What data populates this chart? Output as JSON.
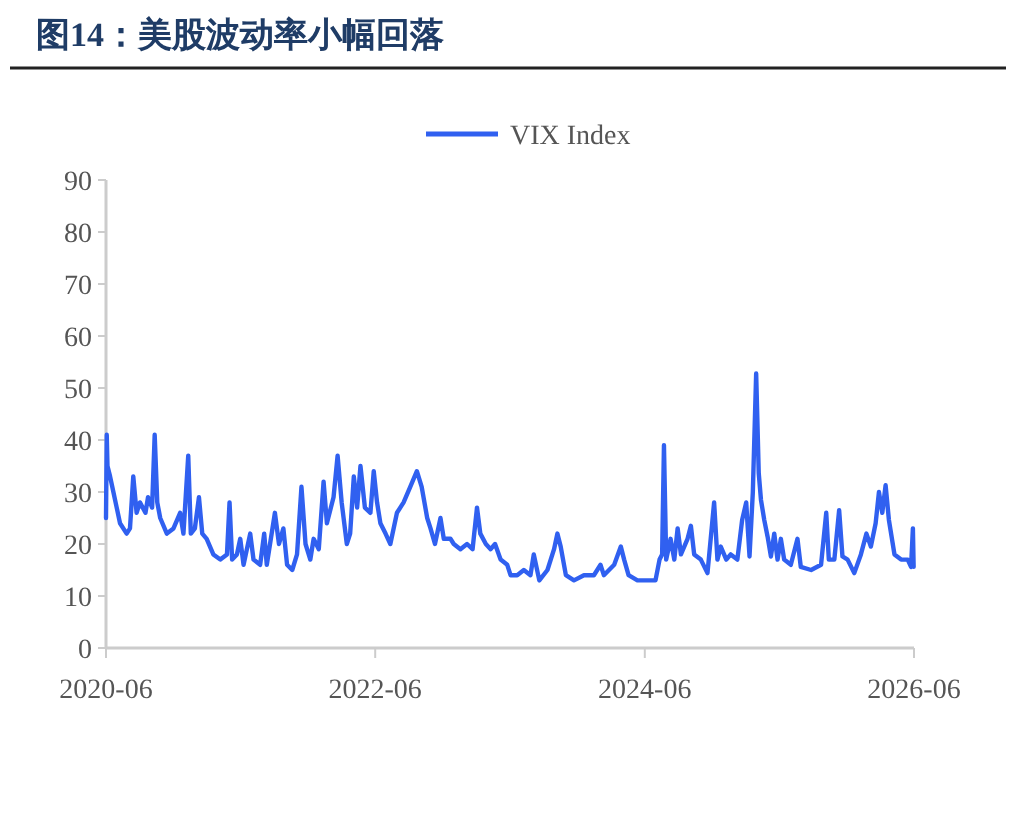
{
  "chart_data": {
    "type": "line",
    "title": "图14：美股波动率小幅回落",
    "legend": "top",
    "grid": false,
    "marker": "none",
    "line_style": "solid",
    "xlim": [
      "2020-06",
      "2026-06"
    ],
    "xticks": [
      "2020-06",
      "2022-06",
      "2024-06",
      "2026-06"
    ],
    "ylim": [
      0,
      90
    ],
    "yticks": [
      0,
      10,
      20,
      30,
      40,
      50,
      60,
      70,
      80,
      90
    ],
    "x": [
      "2020-06-01",
      "2020-06-03",
      "2020-06-05",
      "2020-06-12",
      "2020-06-21",
      "2020-06-30",
      "2020-07-09",
      "2020-07-27",
      "2020-08-05",
      "2020-08-14",
      "2020-08-23",
      "2020-09-01",
      "2020-09-16",
      "2020-09-23",
      "2020-10-04",
      "2020-10-11",
      "2020-10-18",
      "2020-10-26",
      "2020-11-13",
      "2020-12-01",
      "2020-12-19",
      "2020-12-28",
      "2021-01-10",
      "2021-01-17",
      "2021-01-28",
      "2021-02-08",
      "2021-02-17",
      "2021-03-01",
      "2021-03-19",
      "2021-04-07",
      "2021-04-25",
      "2021-05-02",
      "2021-05-09",
      "2021-05-22",
      "2021-05-31",
      "2021-06-09",
      "2021-06-27",
      "2021-07-06",
      "2021-07-24",
      "2021-08-04",
      "2021-08-11",
      "2021-09-02",
      "2021-09-13",
      "2021-09-25",
      "2021-10-05",
      "2021-10-19",
      "2021-11-01",
      "2021-11-13",
      "2021-11-24",
      "2021-12-07",
      "2021-12-16",
      "2021-12-30",
      "2022-01-12",
      "2022-01-21",
      "2022-02-08",
      "2022-02-19",
      "2022-03-02",
      "2022-03-16",
      "2022-03-25",
      "2022-04-04",
      "2022-04-13",
      "2022-04-22",
      "2022-05-04",
      "2022-05-19",
      "2022-05-28",
      "2022-06-06",
      "2022-06-15",
      "2022-06-29",
      "2022-07-12",
      "2022-07-30",
      "2022-08-17",
      "2022-09-04",
      "2022-09-22",
      "2022-10-05",
      "2022-10-20",
      "2022-10-29",
      "2022-11-10",
      "2022-11-25",
      "2022-12-04",
      "2022-12-22",
      "2022-12-31",
      "2023-01-18",
      "2023-02-05",
      "2023-02-20",
      "2023-03-04",
      "2023-03-13",
      "2023-03-28",
      "2023-04-10",
      "2023-04-22",
      "2023-05-07",
      "2023-05-25",
      "2023-06-03",
      "2023-06-21",
      "2023-07-09",
      "2023-07-27",
      "2023-08-05",
      "2023-08-20",
      "2023-09-11",
      "2023-09-29",
      "2023-10-08",
      "2023-10-17",
      "2023-10-31",
      "2023-11-22",
      "2023-12-19",
      "2024-01-15",
      "2024-02-02",
      "2024-02-11",
      "2024-03-10",
      "2024-03-28",
      "2024-04-06",
      "2024-04-18",
      "2024-05-12",
      "2024-06-08",
      "2024-06-30",
      "2024-07-11",
      "2024-07-18",
      "2024-07-23",
      "2024-07-29",
      "2024-08-10",
      "2024-08-20",
      "2024-08-29",
      "2024-09-07",
      "2024-09-25",
      "2024-10-04",
      "2024-10-13",
      "2024-10-31",
      "2024-11-18",
      "2024-12-06",
      "2024-12-15",
      "2024-12-24",
      "2025-01-08",
      "2025-01-20",
      "2025-02-07",
      "2025-02-20",
      "2025-03-03",
      "2025-03-12",
      "2025-03-21",
      "2025-03-30",
      "2025-04-06",
      "2025-04-12",
      "2025-04-21",
      "2025-04-30",
      "2025-05-09",
      "2025-05-18",
      "2025-05-27",
      "2025-06-05",
      "2025-06-14",
      "2025-07-02",
      "2025-07-20",
      "2025-07-29",
      "2025-08-26",
      "2025-09-22",
      "2025-10-06",
      "2025-10-13",
      "2025-10-28",
      "2025-11-10",
      "2025-11-19",
      "2025-12-03",
      "2025-12-21",
      "2026-01-08",
      "2026-01-23",
      "2026-02-04",
      "2026-02-17",
      "2026-02-26",
      "2026-03-07",
      "2026-03-16",
      "2026-03-25",
      "2026-04-09",
      "2026-04-27",
      "2026-05-15",
      "2026-05-24",
      "2026-05-29",
      "2026-05-31"
    ],
    "series": [
      {
        "name": "VIX Index",
        "color": "#3060f0",
        "values": [
          25,
          41,
          35,
          33,
          30,
          27,
          24,
          22,
          23,
          33,
          26,
          28,
          26,
          29,
          27,
          41,
          28,
          25,
          22,
          23,
          26,
          22,
          37,
          22,
          23,
          29,
          22,
          21,
          18,
          17,
          18,
          28,
          17,
          18,
          21,
          16,
          22,
          17,
          16,
          22,
          16,
          26,
          20,
          23,
          16,
          15,
          18,
          31,
          20,
          17,
          21,
          19,
          32,
          24,
          29,
          37,
          28,
          20,
          22,
          33,
          27,
          35,
          27,
          26,
          34,
          28,
          24,
          22,
          20,
          26,
          28,
          31,
          34,
          31,
          25,
          23,
          20,
          25,
          21,
          21,
          20,
          19,
          20,
          19,
          27,
          22,
          20,
          19,
          20,
          17,
          16,
          14,
          14,
          15,
          14,
          18,
          13,
          15,
          19,
          22,
          19.5,
          14,
          13,
          14,
          14,
          16,
          14,
          16,
          19.5,
          17,
          14,
          13,
          13,
          13,
          17,
          18,
          39,
          17,
          21,
          17,
          23,
          18,
          21,
          23.5,
          18,
          17,
          14.4,
          28,
          17,
          19.5,
          17,
          18,
          17,
          24.6,
          28,
          17.6,
          30,
          52.8,
          33.6,
          28.5,
          24.6,
          21.4,
          17.6,
          22,
          17,
          21,
          17,
          16,
          21,
          15.6,
          15,
          16,
          26,
          17,
          17,
          26.5,
          17.6,
          17,
          14.4,
          18,
          22,
          19.5,
          24,
          30,
          26,
          31.3,
          24.6,
          18,
          17,
          17,
          15.6,
          23,
          15.6
        ]
      }
    ]
  }
}
